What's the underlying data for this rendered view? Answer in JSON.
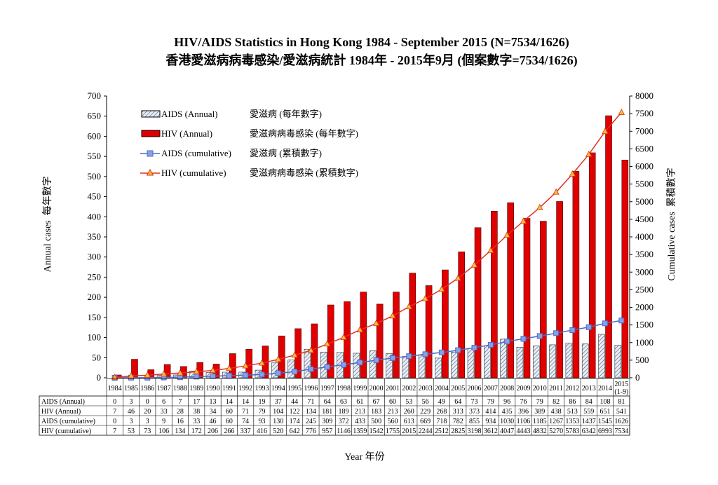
{
  "chart_data": {
    "type": "bar",
    "title": "HIV/AIDS Statistics in Hong Kong 1984 - September 2015 (N=7534/1626)",
    "subtitle": "香港愛滋病病毒感染/愛滋病統計 1984年 - 2015年9月 (個案數字=7534/1626)",
    "xlabel": "Year 年份",
    "ylabel": "Annual cases  每年數字",
    "y2label": "Cumulative cases  累積數字",
    "ylim": [
      0,
      700
    ],
    "y2lim": [
      0,
      8000
    ],
    "yticks": [
      0,
      50,
      100,
      150,
      200,
      250,
      300,
      350,
      400,
      450,
      500,
      550,
      600,
      650,
      700
    ],
    "y2ticks": [
      0,
      500,
      1000,
      1500,
      2000,
      2500,
      3000,
      3500,
      4000,
      4500,
      5000,
      5500,
      6000,
      6500,
      7000,
      7500,
      8000
    ],
    "grid": false,
    "legend_placement": "top-left",
    "categories": [
      "1984",
      "1985",
      "1986",
      "1987",
      "1988",
      "1989",
      "1990",
      "1991",
      "1992",
      "1993",
      "1994",
      "1995",
      "1996",
      "1997",
      "1998",
      "1999",
      "2000",
      "2001",
      "2002",
      "2003",
      "2004",
      "2005",
      "2006",
      "2007",
      "2008",
      "2009",
      "2010",
      "2011",
      "2012",
      "2013",
      "2014",
      "2015 (1-9)"
    ],
    "series": [
      {
        "name": "AIDS (Annual)",
        "name_zh": "愛滋病 (每年數字)",
        "type": "bar",
        "axis": "left",
        "color": "#b8c8dc",
        "values": [
          0,
          3,
          0,
          6,
          7,
          17,
          13,
          14,
          14,
          19,
          37,
          44,
          71,
          64,
          63,
          61,
          67,
          60,
          53,
          56,
          49,
          64,
          73,
          79,
          96,
          76,
          79,
          82,
          86,
          84,
          108,
          81
        ]
      },
      {
        "name": "HIV (Annual)",
        "name_zh": "愛滋病病毒感染 (每年數字)",
        "type": "bar",
        "axis": "left",
        "color": "#e00000",
        "values": [
          7,
          46,
          20,
          33,
          28,
          38,
          34,
          60,
          71,
          79,
          104,
          122,
          134,
          181,
          189,
          213,
          183,
          213,
          260,
          229,
          268,
          313,
          373,
          414,
          435,
          396,
          389,
          438,
          513,
          559,
          651,
          541
        ]
      },
      {
        "name": "AIDS (cumulative)",
        "name_zh": "愛滋病 (累積數字)",
        "type": "line",
        "axis": "right",
        "color": "#4a6cc0",
        "marker_color": "#8c9ee8",
        "values": [
          0,
          3,
          3,
          9,
          16,
          33,
          46,
          60,
          74,
          93,
          130,
          174,
          245,
          309,
          372,
          433,
          500,
          560,
          613,
          669,
          718,
          782,
          855,
          934,
          1030,
          1106,
          1185,
          1267,
          1353,
          1437,
          1545,
          1626
        ]
      },
      {
        "name": "HIV (cumulative)",
        "name_zh": "愛滋病病毒感染 (累積數字)",
        "type": "line",
        "axis": "right",
        "color": "#e03020",
        "marker_color": "#f5c030",
        "values": [
          7,
          53,
          73,
          106,
          134,
          172,
          206,
          266,
          337,
          416,
          520,
          642,
          776,
          957,
          1146,
          1359,
          1542,
          1755,
          2015,
          2244,
          2512,
          2825,
          3198,
          3612,
          4047,
          4443,
          4832,
          5270,
          5783,
          6342,
          6993,
          7534
        ]
      }
    ],
    "table_row_labels": [
      "AIDS (Annual)",
      "HIV (Annual)",
      "AIDS (cumulative)",
      "HIV (cumulative)"
    ]
  }
}
